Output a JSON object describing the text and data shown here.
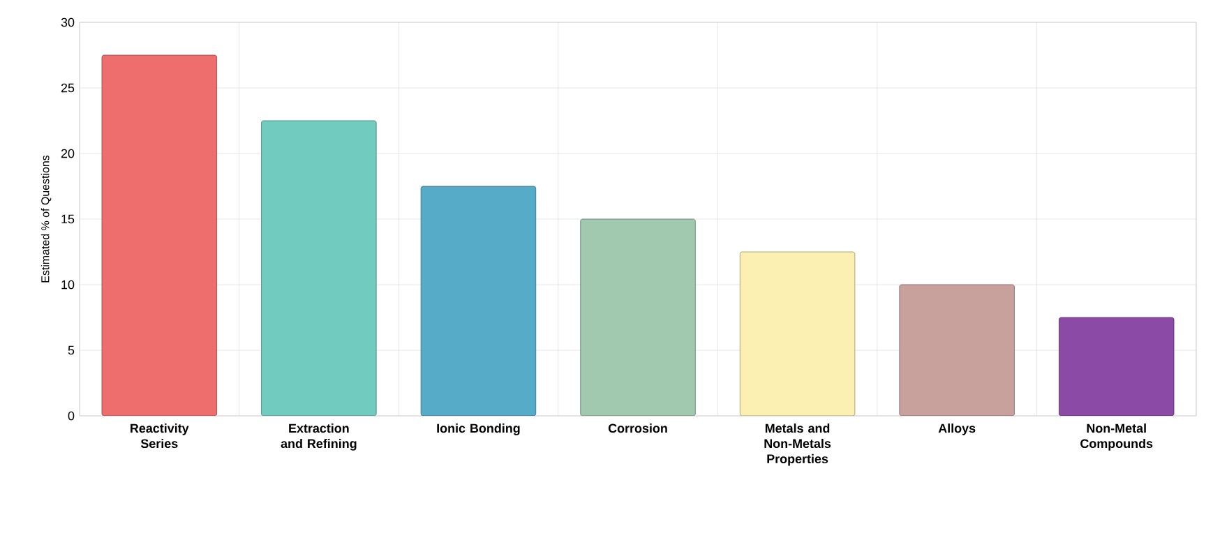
{
  "chart_data": {
    "type": "bar",
    "ylabel": "Estimated % of Questions",
    "categories": [
      "Reactivity Series",
      "Extraction and Refining",
      "Ionic Bonding",
      "Corrosion",
      "Metals and Non-Metals Properties",
      "Alloys",
      "Non-Metal Compounds"
    ],
    "values": [
      27.5,
      22.5,
      17.5,
      15,
      12.5,
      10,
      7.5
    ],
    "colors": [
      "#ee6e6e",
      "#72cbbf",
      "#56abc9",
      "#a0c9b0",
      "#fbefb2",
      "#c8a19d",
      "#8a4aa6"
    ],
    "ylim": [
      0,
      30
    ],
    "yticks": [
      0,
      5,
      10,
      15,
      20,
      25,
      30
    ],
    "grid": true
  }
}
